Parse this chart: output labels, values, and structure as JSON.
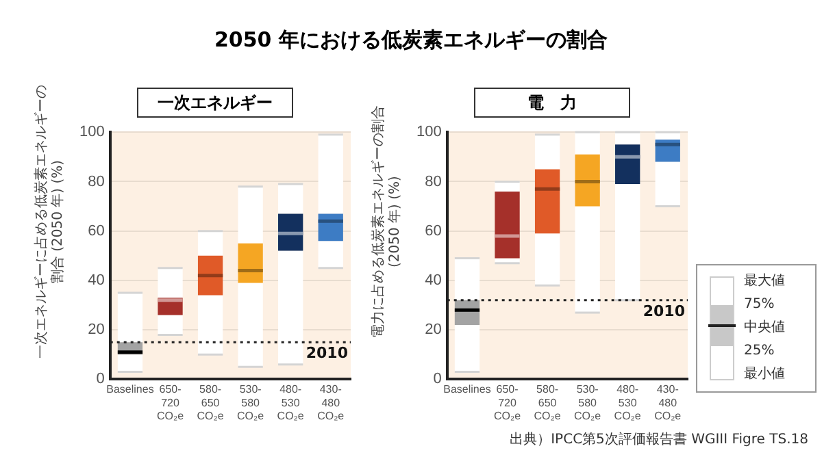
{
  "chart_data": [
    {
      "type": "box",
      "title": "一次エネルギー",
      "ylabel": "一次エネルギーに占める低炭素エネルギーの割合 (2050 年) (%)",
      "categories": [
        "Baselines",
        "650-720 CO₂e",
        "580-650 CO₂e",
        "530-580 CO₂e",
        "480-530 CO₂e",
        "430-480 CO₂e"
      ],
      "boxes": [
        {
          "low": 3,
          "q1": 10,
          "median": 11,
          "q3": 15,
          "high": 35
        },
        {
          "low": 18,
          "q1": 26,
          "median": 32,
          "q3": 33,
          "high": 45
        },
        {
          "low": 10,
          "q1": 34,
          "median": 42,
          "q3": 50,
          "high": 60
        },
        {
          "low": 5,
          "q1": 39,
          "median": 44,
          "q3": 55,
          "high": 78
        },
        {
          "low": 6,
          "q1": 52,
          "median": 59,
          "q3": 67,
          "high": 79
        },
        {
          "low": 45,
          "q1": 56,
          "median": 64,
          "q3": 67,
          "high": 99
        }
      ],
      "colors": [
        "#a3a3a3",
        "#a5302a",
        "#e05a28",
        "#f5a623",
        "#13305e",
        "#3d7cc4"
      ],
      "ylim": [
        0,
        100
      ],
      "yticks": [
        0,
        20,
        40,
        60,
        80,
        100
      ],
      "grid": "y",
      "ref_lines": [
        {
          "axis": "y",
          "value": 15,
          "line_style": "dotted",
          "color": "#222222"
        }
      ],
      "annotations": [
        "2050 年における低炭素エネルギーの割合",
        {
          "text": "2010",
          "y": 15
        }
      ]
    },
    {
      "type": "box",
      "title": "電　力",
      "ylabel": "電力に占める低炭素エネルギーの割合 (2050 年) (%)",
      "categories": [
        "Baselines",
        "650-720 CO₂e",
        "580-650 CO₂e",
        "530-580 CO₂e",
        "480-530 CO₂e",
        "430-480 CO₂e"
      ],
      "boxes": [
        {
          "low": 3,
          "q1": 22,
          "median": 28,
          "q3": 32,
          "high": 49
        },
        {
          "low": 47,
          "q1": 49,
          "median": 58,
          "q3": 76,
          "high": 80
        },
        {
          "low": 38,
          "q1": 59,
          "median": 77,
          "q3": 85,
          "high": 99
        },
        {
          "low": 27,
          "q1": 70,
          "median": 80,
          "q3": 91,
          "high": 100
        },
        {
          "low": 32,
          "q1": 79,
          "median": 90,
          "q3": 95,
          "high": 100
        },
        {
          "low": 70,
          "q1": 88,
          "median": 95,
          "q3": 97,
          "high": 100
        }
      ],
      "colors": [
        "#a3a3a3",
        "#a5302a",
        "#e05a28",
        "#f5a623",
        "#13305e",
        "#3d7cc4"
      ],
      "ylim": [
        0,
        100
      ],
      "yticks": [
        0,
        20,
        40,
        60,
        80,
        100
      ],
      "grid": "y",
      "ref_lines": [
        {
          "axis": "y",
          "value": 32,
          "line_style": "dotted",
          "color": "#222222"
        }
      ],
      "annotations": [
        "最大値",
        "75%",
        "中央値",
        "25%",
        "最小値",
        "出典）IPCC第5次評価報告書 WGIII Figre TS.18",
        {
          "text": "2010",
          "y": 32
        }
      ]
    }
  ]
}
